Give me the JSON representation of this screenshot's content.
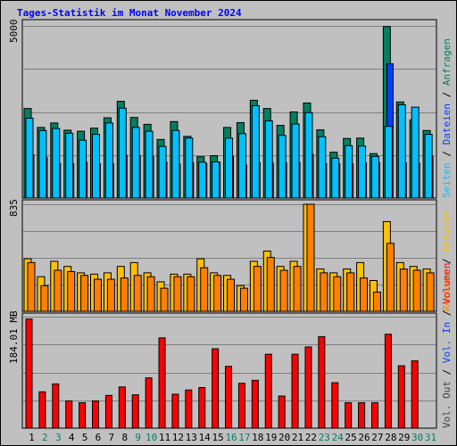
{
  "chart_data": {
    "type": "bar",
    "title": "Tages-Statistik im Monat November 2024",
    "x": [
      "1",
      "2",
      "3",
      "4",
      "5",
      "6",
      "7",
      "8",
      "9",
      "10",
      "11",
      "12",
      "13",
      "14",
      "15",
      "16",
      "17",
      "18",
      "19",
      "20",
      "21",
      "22",
      "23",
      "24",
      "25",
      "26",
      "27",
      "28",
      "29",
      "30",
      "31"
    ],
    "weekend_days": [
      "2",
      "3",
      "9",
      "10",
      "16",
      "17",
      "23",
      "24",
      "30",
      "31"
    ],
    "colors": {
      "hits": "#008060",
      "files": "#0040ff",
      "visits": "#00c0ff",
      "hosts": "#ff8000",
      "visitors": "#ffc000",
      "volume": "#ff0000",
      "weekday": "#000000",
      "weekend": "#008060",
      "background": "#c0c0c0"
    },
    "panels": [
      {
        "ymax_label": "5000",
        "ymax": 5000,
        "legend": [
          "Seiten",
          "Dateien",
          "Anfragen"
        ],
        "series": [
          {
            "name": "Anfragen",
            "values": [
              2600,
              2050,
              2180,
              1970,
              1940,
              2030,
              2330,
              2810,
              2340,
              2140,
              1700,
              2220,
              1790,
              1200,
              1230,
              2050,
              2190,
              2840,
              2600,
              2110,
              2500,
              2760,
              1980,
              1330,
              1730,
              1740,
              1290,
              4980,
              2790,
              2270,
              1960
            ]
          },
          {
            "name": "Dateien",
            "values": [
              1260,
              1180,
              1000,
              1000,
              1040,
              1000,
              990,
              1240,
              1230,
              1200,
              1040,
              990,
              1030,
              1000,
              1040,
              1210,
              960,
              1040,
              1020,
              1020,
              1030,
              1270,
              1000,
              990,
              1000,
              1020,
              1020,
              3900,
              1020,
              1010,
              1210
            ]
          },
          {
            "name": "Seiten",
            "values": [
              2320,
              1960,
              2020,
              1880,
              1680,
              1850,
              2180,
              2610,
              2050,
              1940,
              1500,
              1960,
              1740,
              1040,
              1050,
              1740,
              1870,
              2680,
              2240,
              1820,
              2150,
              2480,
              1780,
              1160,
              1520,
              1510,
              1210,
              2080,
              2710,
              2640,
              1850
            ]
          }
        ]
      },
      {
        "ymax_label": "835",
        "ymax": 835,
        "legend": [
          "Rechner",
          "Besuche"
        ],
        "series": [
          {
            "name": "Besuche",
            "values": [
              410,
              270,
              390,
              350,
              300,
              290,
              300,
              350,
              380,
              300,
              230,
              290,
              290,
              410,
              300,
              280,
              200,
              390,
              470,
              350,
              390,
              835,
              330,
              300,
              330,
              380,
              240,
              700,
              380,
              350,
              330
            ]
          },
          {
            "name": "Rechner",
            "values": [
              380,
              200,
              320,
              310,
              280,
              250,
              250,
              260,
              280,
              270,
              180,
              270,
              270,
              340,
              280,
              250,
              180,
              350,
              420,
              320,
              350,
              835,
              300,
              270,
              300,
              260,
              150,
              530,
              330,
              320,
              300
            ]
          }
        ]
      },
      {
        "ymax_label": "184.01 MB",
        "ymax": 184.01,
        "legend": [
          "Vol. Out",
          "Vol. In",
          "Volumen"
        ],
        "series": [
          {
            "name": "Volumen",
            "values": [
              180,
              60,
              73,
              45,
              42,
              45,
              54,
              68,
              55,
              83,
              149,
              56,
              63,
              67,
              131,
              102,
              74,
              79,
              122,
              53,
              122,
              134,
              151,
              75,
              42,
              42,
              42,
              155,
              103,
              111,
              0
            ]
          }
        ]
      }
    ]
  }
}
